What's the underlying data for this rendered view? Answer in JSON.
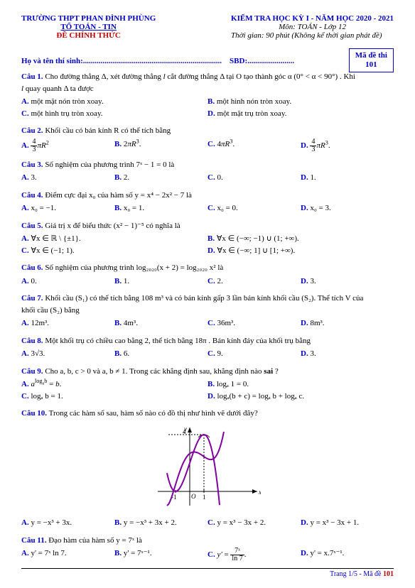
{
  "header": {
    "school": "TRƯỜNG THPT PHAN ĐÌNH PHÙNG",
    "dept": "TỔ TOÁN - TIN",
    "official": "ĐỀ CHÍNH THỨC",
    "exam_title": "KIỂM TRA HỌC KỲ I - NĂM HỌC 2020 - 2021",
    "subject": "Môn: TOÁN - Lớp 12",
    "duration": "Thời gian: 90 phút (Không kể thời gian phát đề)",
    "code_label": "Mã đề thi",
    "code_no": "101",
    "name_label": "Họ và tên thí sinh:.......................................................................",
    "sbd_label": "SBD:........................"
  },
  "q1": {
    "label": "Câu 1.",
    "text1": " Cho đường thẳng Δ, xét đường thẳng ",
    "italic_l": "l",
    "text2": " cắt đường thẳng Δ tại O tạo thành góc α",
    "cond": "(0° < α < 90°)",
    "text3": ". Khi",
    "text4": " quay quanh Δ ta được",
    "A": "một mặt nón tròn xoay.",
    "B": "một hình nón tròn xoay.",
    "C": "một hình trụ tròn xoay.",
    "D": "một mặt trụ tròn xoay."
  },
  "q2": {
    "label": "Câu 2.",
    "text": " Khối cầu có bán kính R có thể tích bằng"
  },
  "q3": {
    "label": "Câu 3.",
    "text": " Số nghiệm của phương trình 7ˣ − 1 = 0 là",
    "A": "3.",
    "B": "2.",
    "C": "0.",
    "D": "1."
  },
  "q4": {
    "label": "Câu 4.",
    "text": " Điểm cực đại x₀ của hàm số y = x⁴ − 2x² − 7 là",
    "A": "x₀ = −1.",
    "B": "x₀ = 1.",
    "C": "x₀ = 0.",
    "D": "x₀ = 3."
  },
  "q5": {
    "label": "Câu 5.",
    "text": " Giá trị x để biểu thức (x² − 1)⁻⁵ có nghĩa là",
    "A": "∀x ∈ ℝ \\ {±1}.",
    "B": "∀x ∈ (−∞; −1) ∪ (1; +∞).",
    "C": "∀x ∈ (−1; 1).",
    "D": "∀x ∈ (−∞; 1] ∪ [1; +∞)."
  },
  "q6": {
    "label": "Câu 6.",
    "text": " Số nghiệm của phương trình log₂₀₂₀(x + 2) = log₂₀₂₀ x² là",
    "A": "0.",
    "B": "1.",
    "C": "2.",
    "D": "3."
  },
  "q7": {
    "label": "Câu 7.",
    "text1": " Khối cầu (S₁) có thể tích bằng 108 m³ và có bán kính gấp 3 lần bán kính khối cầu (S₂). Thể tích V của",
    "text2": "khối cầu (S₂) bằng",
    "A": "12m³.",
    "B": "4m³.",
    "C": "36m³.",
    "D": "8m³."
  },
  "q8": {
    "label": "Câu 8.",
    "text": " Một khối trụ có chiều cao bằng 2, thể tích bằng 18π . Bán kính đáy của khối trụ bằng",
    "A": "3√3.",
    "B": "6.",
    "C": "9.",
    "D": "3."
  },
  "q9": {
    "label": "Câu 9.",
    "text1": " Cho a, b, c > 0 và a, b ≠ 1. Trong các khẳng định sau, khẳng định nào ",
    "sai": "sai",
    "text2": "?",
    "B": "logₐ 1 = 0.",
    "C": "logₐ b = 1.",
    "D": "logₐ(b + c) = logₐ b + logₐ c."
  },
  "q10": {
    "label": "Câu 10.",
    "text": " Trong các hàm số sau, hàm số nào có đồ thị như hình vẽ dưới đây?",
    "A": "y = −x³ + 3x.",
    "B": "y = −x³ + 3x + 2.",
    "C": "y = x³ − 3x + 2.",
    "D": "y = x³ − 3x + 1."
  },
  "q11": {
    "label": "Câu 11.",
    "text": " Đạo hàm của hàm số y = 7ˣ là",
    "A": "y' = 7ˣ ln 7.",
    "B": "y' = 7ˣ⁻¹.",
    "D": "y' = x.7ˣ⁻¹."
  },
  "graph": {
    "bg": "#ffffff",
    "axis_color": "#000000",
    "curve_color": "#8000a0",
    "width": 150,
    "height": 120,
    "xrange": [
      -1.8,
      2.0
    ],
    "yrange": [
      -1.0,
      4.6
    ],
    "xtick_labels": [
      "-1",
      "O",
      "1"
    ],
    "ytick_label": "4",
    "func_desc": "−x³ + 3x + 2",
    "local_max": 4,
    "root_right": 2
  },
  "footer": {
    "text1": "Trang 1/5 - Mã đề ",
    "code": "101"
  },
  "colors": {
    "blue": "#0000c8",
    "red": "#c00000",
    "purple": "#8000a0",
    "black": "#000000"
  }
}
